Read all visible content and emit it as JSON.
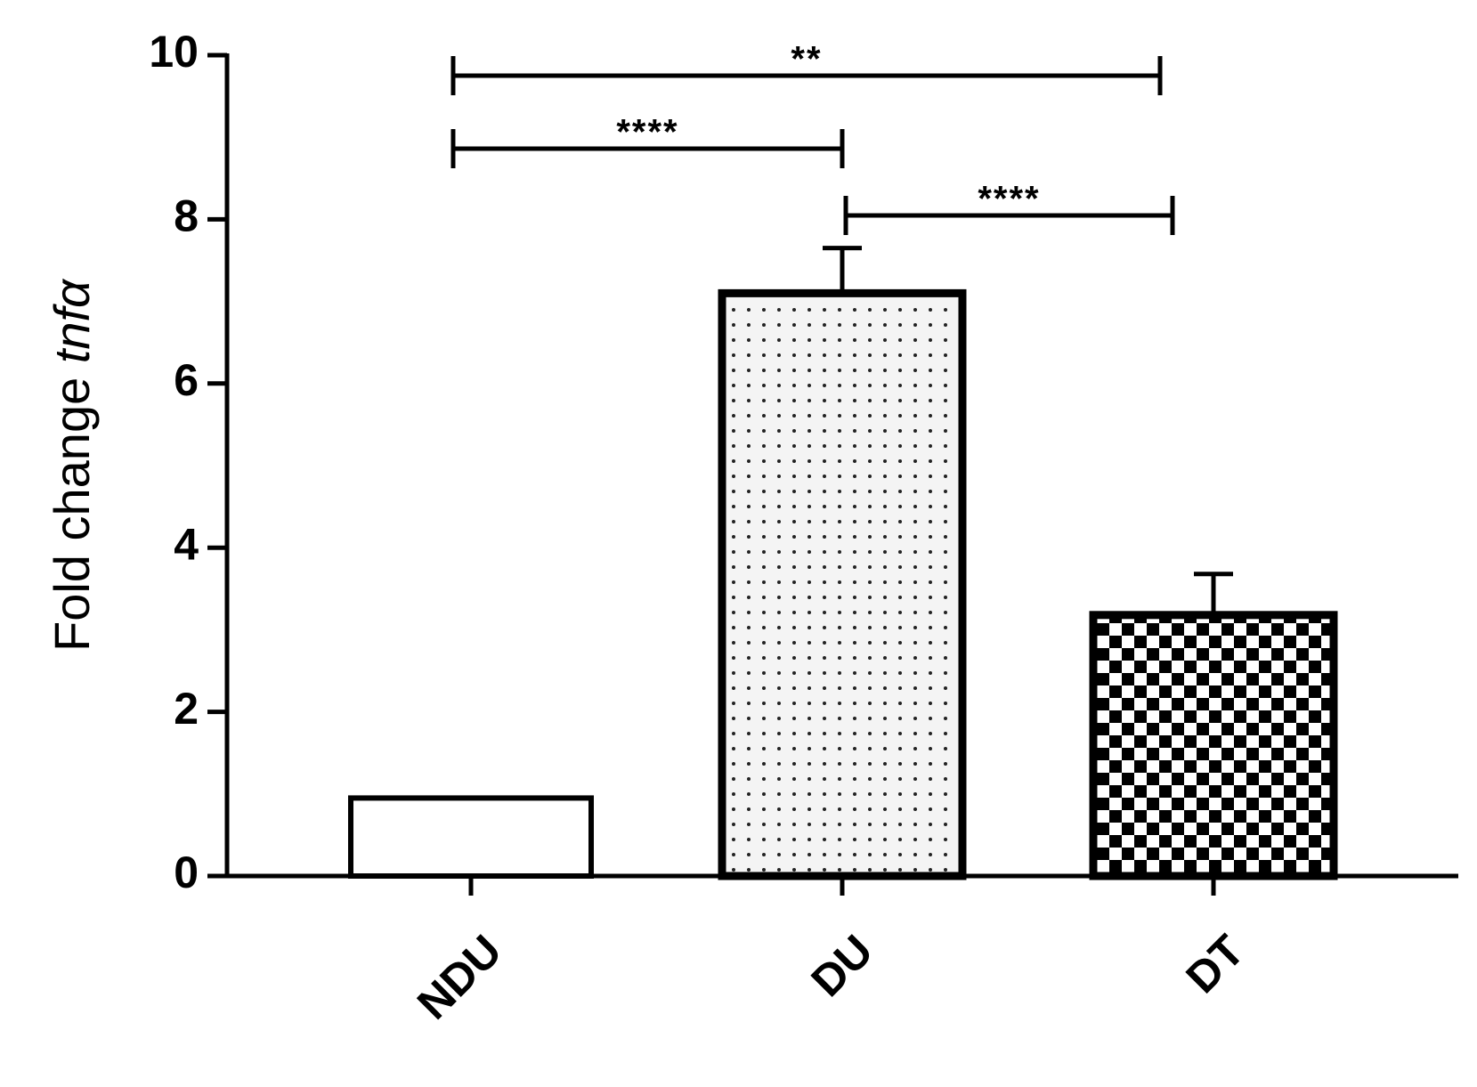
{
  "chart_data": {
    "type": "bar",
    "ylabel": "Fold change",
    "ylabel_italic": "tnfα",
    "categories": [
      "NDU",
      "DU",
      "DT"
    ],
    "values": [
      0.95,
      7.1,
      3.18
    ],
    "errors": [
      null,
      0.55,
      0.5
    ],
    "patterns": [
      "none",
      "dots",
      "checker"
    ],
    "color": "#000000",
    "ylim": [
      0,
      10
    ],
    "yticks": [
      0,
      2,
      4,
      6,
      8,
      10
    ],
    "grid": false,
    "annotations": [
      {
        "text": "**",
        "from": "NDU",
        "to": "DT"
      },
      {
        "text": "****",
        "from": "NDU",
        "to": "DU"
      },
      {
        "text": "****",
        "from": "DU",
        "to": "DT"
      }
    ]
  }
}
